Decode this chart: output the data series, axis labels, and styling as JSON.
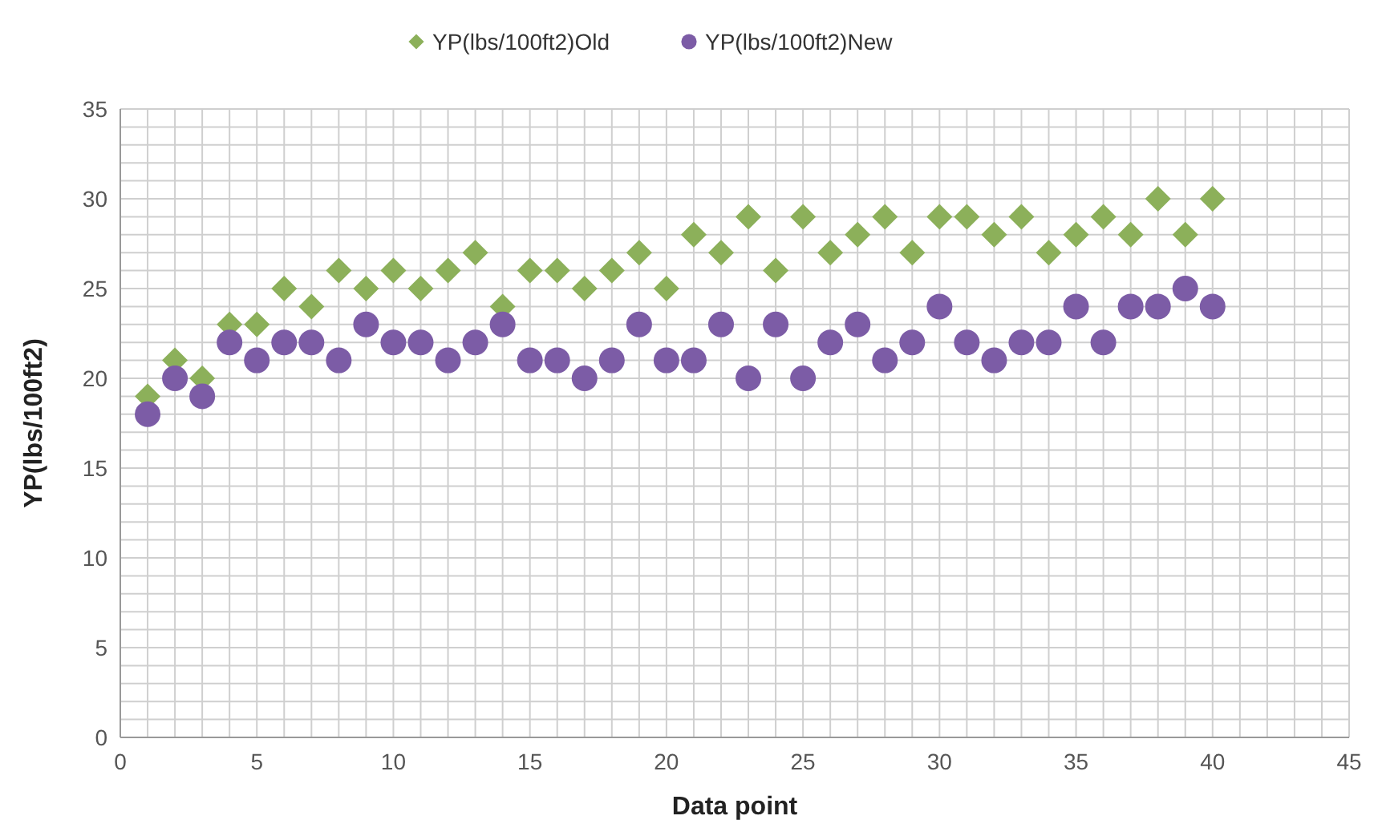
{
  "chart_data": {
    "type": "scatter",
    "xlabel": "Data point",
    "ylabel": "YP(lbs/100ft2)",
    "xlim": [
      0,
      45
    ],
    "ylim": [
      0,
      35
    ],
    "xticks": [
      0,
      5,
      10,
      15,
      20,
      25,
      30,
      35,
      40,
      45
    ],
    "yticks": [
      0,
      5,
      10,
      15,
      20,
      25,
      30,
      35
    ],
    "grid": true,
    "legend": "top",
    "x": [
      1,
      2,
      3,
      4,
      5,
      6,
      7,
      8,
      9,
      10,
      11,
      12,
      13,
      14,
      15,
      16,
      17,
      18,
      19,
      20,
      21,
      22,
      23,
      24,
      25,
      26,
      27,
      28,
      29,
      30,
      31,
      32,
      33,
      34,
      35,
      36,
      37,
      38,
      39,
      40
    ],
    "series": [
      {
        "name": "YP(lbs/100ft2)Old",
        "color": "#8cb05a",
        "marker": "diamond",
        "values": [
          19,
          21,
          20,
          23,
          23,
          25,
          24,
          26,
          25,
          26,
          25,
          26,
          27,
          24,
          26,
          26,
          25,
          26,
          27,
          25,
          28,
          27,
          29,
          26,
          29,
          27,
          28,
          29,
          27,
          29,
          29,
          28,
          29,
          27,
          28,
          29,
          28,
          30,
          28,
          30
        ]
      },
      {
        "name": "YP(lbs/100ft2)New",
        "color": "#7c5ca6",
        "marker": "circle",
        "values": [
          18,
          20,
          19,
          22,
          21,
          22,
          22,
          21,
          23,
          22,
          22,
          21,
          22,
          23,
          21,
          21,
          20,
          21,
          23,
          21,
          21,
          23,
          20,
          23,
          20,
          22,
          23,
          21,
          22,
          24,
          22,
          21,
          22,
          22,
          24,
          22,
          24,
          24,
          25,
          24
        ]
      }
    ]
  }
}
